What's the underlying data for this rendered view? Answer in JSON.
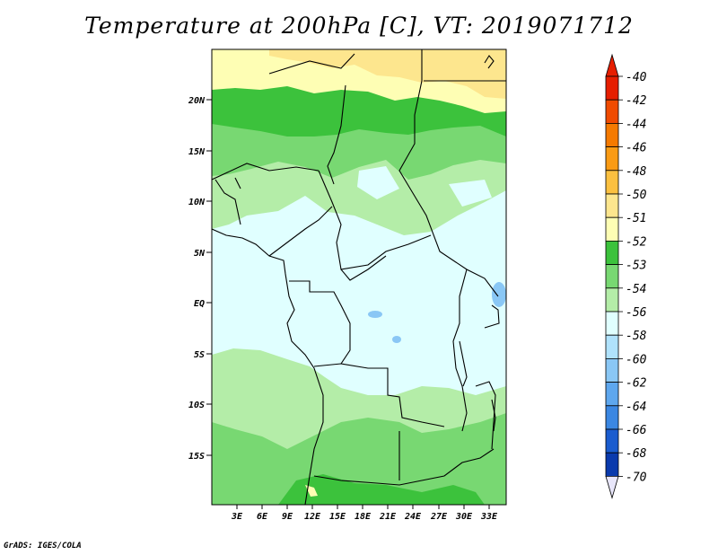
{
  "title": "Temperature at 200hPa [C], VT: 2019071712",
  "credit": "GrADS: IGES/COLA",
  "lat_labels": [
    "20N",
    "15N",
    "10N",
    "5N",
    "EQ",
    "5S",
    "10S",
    "15S"
  ],
  "lon_labels": [
    "3E",
    "6E",
    "9E",
    "12E",
    "15E",
    "18E",
    "21E",
    "24E",
    "27E",
    "30E",
    "33E"
  ],
  "colorbar": {
    "labels": [
      "-40",
      "-42",
      "-44",
      "-46",
      "-48",
      "-50",
      "-51",
      "-52",
      "-53",
      "-54",
      "-56",
      "-58",
      "-60",
      "-62",
      "-64",
      "-66",
      "-68",
      "-70"
    ],
    "colors": [
      "#e61e00",
      "#f04b00",
      "#f57a00",
      "#fa9b14",
      "#fbc040",
      "#fde68e",
      "#fefeb4",
      "#3cc23c",
      "#78d872",
      "#b4eda8",
      "#e0ffff",
      "#b0e2fc",
      "#8ac7f5",
      "#5ea7ee",
      "#3b87e2",
      "#1a5ccf",
      "#0a3aad",
      "#08126a"
    ],
    "top_tip_color": "#e61e00",
    "bottom_tip_color": "#e8e6fa"
  },
  "palette": {
    "yellow_deep": "#fde68e",
    "yellow_light": "#fefeb4",
    "green_dark": "#3cc23c",
    "green_mid": "#78d872",
    "green_light": "#b4eda8",
    "cyan": "#e0ffff",
    "blue": "#8ac7f5"
  }
}
